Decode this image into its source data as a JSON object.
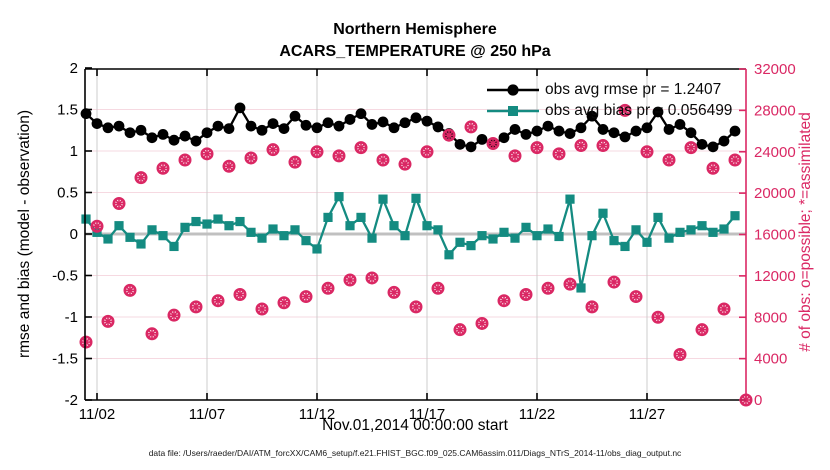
{
  "figure": {
    "title_line1": "Northern Hemisphere",
    "title_line2": "ACARS_TEMPERATURE @ 250 hPa",
    "xlabel": "Nov.01,2014 00:00:00 start",
    "ylabel_left": "rmse and bias (model - observation)",
    "ylabel_right": "# of obs: o=possible; *=assimilated",
    "datafile_note": "data file: /Users/raeder/DAI/ATM_forcXX/CAM6_setup/f.e21.FHIST_BGC.f09_025.CAM6assim.011/Diags_NTrS_2014-11/obs_diag_output.nc",
    "legend": {
      "rmse_label": "obs avg rmse pr = 1.2407",
      "bias_label": "obs avg bias pr = 0.056499"
    }
  },
  "colors": {
    "black": "#000000",
    "teal": "#148B81",
    "pink": "#DA2864",
    "grid_h": "#f6d9e1",
    "grid_v": "#cccccc",
    "zero_line": "#c0c0c0"
  },
  "chart_data": {
    "type": "line",
    "title": "Northern Hemisphere / ACARS_TEMPERATURE @ 250 hPa",
    "xlabel": "Nov.01,2014 00:00:00 start",
    "ylabel_left": "rmse and bias (model - observation)",
    "ylabel_right": "# of obs: o=possible; *=assimilated",
    "x_unit": "days since Nov 1, 2014 00:00 UTC",
    "y_left_range": [
      -2,
      2
    ],
    "y_right_range": [
      0,
      32000
    ],
    "grid": true,
    "legend_position": "upper-right-inside",
    "x_ticks": [
      {
        "t": 1,
        "label": "11/02"
      },
      {
        "t": 6,
        "label": "11/07"
      },
      {
        "t": 11,
        "label": "11/12"
      },
      {
        "t": 16,
        "label": "11/17"
      },
      {
        "t": 21,
        "label": "11/22"
      },
      {
        "t": 26,
        "label": "11/27"
      }
    ],
    "y_left_ticks": [
      {
        "v": 2,
        "label": "2"
      },
      {
        "v": 1.5,
        "label": "1.5"
      },
      {
        "v": 1,
        "label": "1"
      },
      {
        "v": 0.5,
        "label": "0.5"
      },
      {
        "v": 0,
        "label": "0"
      },
      {
        "v": -0.5,
        "label": "-0.5"
      },
      {
        "v": -1,
        "label": "-1"
      },
      {
        "v": -1.5,
        "label": "-1.5"
      },
      {
        "v": -2,
        "label": "-2"
      }
    ],
    "y_right_ticks": [
      {
        "n": 32000,
        "label": "32000"
      },
      {
        "n": 28000,
        "label": "28000"
      },
      {
        "n": 24000,
        "label": "24000"
      },
      {
        "n": 20000,
        "label": "20000"
      },
      {
        "n": 16000,
        "label": "16000"
      },
      {
        "n": 12000,
        "label": "12000"
      },
      {
        "n": 8000,
        "label": "8000"
      },
      {
        "n": 4000,
        "label": "4000"
      },
      {
        "n": 0,
        "label": "0"
      }
    ],
    "series": [
      {
        "name": "obs avg rmse pr = 1.2407",
        "axis": "left",
        "color": "#000000",
        "marker": "filled-circle",
        "x": [
          0.5,
          1,
          1.5,
          2,
          2.5,
          3,
          3.5,
          4,
          4.5,
          5,
          5.5,
          6,
          6.5,
          7,
          7.5,
          8,
          8.5,
          9,
          9.5,
          10,
          10.5,
          11,
          11.5,
          12,
          12.5,
          13,
          13.5,
          14,
          14.5,
          15,
          15.5,
          16,
          16.5,
          17,
          17.5,
          18,
          18.5,
          19,
          19.5,
          20,
          20.5,
          21,
          21.5,
          22,
          22.5,
          23,
          23.5,
          24,
          24.5,
          25,
          25.5,
          26,
          26.5,
          27,
          27.5,
          28,
          28.5,
          29,
          29.5,
          30
        ],
        "values": [
          1.45,
          1.33,
          1.28,
          1.3,
          1.22,
          1.25,
          1.16,
          1.2,
          1.13,
          1.18,
          1.12,
          1.22,
          1.3,
          1.27,
          1.52,
          1.3,
          1.25,
          1.33,
          1.27,
          1.42,
          1.31,
          1.28,
          1.34,
          1.3,
          1.38,
          1.45,
          1.32,
          1.35,
          1.28,
          1.34,
          1.4,
          1.36,
          1.29,
          1.21,
          1.08,
          1.05,
          1.14,
          1.08,
          1.16,
          1.26,
          1.2,
          1.24,
          1.3,
          1.24,
          1.21,
          1.28,
          1.42,
          1.26,
          1.22,
          1.17,
          1.24,
          1.28,
          1.47,
          1.26,
          1.32,
          1.22,
          1.08,
          1.05,
          1.12,
          1.24
        ]
      },
      {
        "name": "obs avg bias pr = 0.056499",
        "axis": "left",
        "color": "#148B81",
        "marker": "filled-square",
        "x": [
          0.5,
          1,
          1.5,
          2,
          2.5,
          3,
          3.5,
          4,
          4.5,
          5,
          5.5,
          6,
          6.5,
          7,
          7.5,
          8,
          8.5,
          9,
          9.5,
          10,
          10.5,
          11,
          11.5,
          12,
          12.5,
          13,
          13.5,
          14,
          14.5,
          15,
          15.5,
          16,
          16.5,
          17,
          17.5,
          18,
          18.5,
          19,
          19.5,
          20,
          20.5,
          21,
          21.5,
          22,
          22.5,
          23,
          23.5,
          24,
          24.5,
          25,
          25.5,
          26,
          26.5,
          27,
          27.5,
          28,
          28.5,
          29,
          29.5,
          30
        ],
        "values": [
          0.18,
          0.02,
          -0.06,
          0.1,
          -0.04,
          -0.12,
          0.05,
          -0.02,
          -0.15,
          0.08,
          0.15,
          0.12,
          0.18,
          0.1,
          0.15,
          0.02,
          -0.05,
          0.06,
          -0.02,
          0.05,
          -0.08,
          -0.18,
          0.2,
          0.45,
          0.1,
          0.2,
          -0.05,
          0.42,
          0.1,
          -0.02,
          0.43,
          0.1,
          0.05,
          -0.25,
          -0.1,
          -0.14,
          -0.02,
          -0.06,
          0.02,
          -0.05,
          0.08,
          -0.02,
          0.06,
          -0.03,
          0.42,
          -0.65,
          -0.02,
          0.25,
          -0.08,
          -0.15,
          0.05,
          -0.1,
          0.2,
          -0.05,
          0.02,
          0.05,
          0.1,
          0.02,
          0.06,
          0.22
        ]
      },
      {
        "name": "# of obs (possible / assimilated)",
        "axis": "right",
        "color": "#DA2864",
        "marker": "circle-with-asterisk",
        "x": [
          0.5,
          1,
          1.5,
          2,
          2.5,
          3,
          3.5,
          4,
          4.5,
          5,
          5.5,
          6,
          6.5,
          7,
          7.5,
          8,
          8.5,
          9,
          9.5,
          10,
          10.5,
          11,
          11.5,
          12,
          12.5,
          13,
          13.5,
          14,
          14.5,
          15,
          15.5,
          16,
          16.5,
          17,
          17.5,
          18,
          18.5,
          19,
          19.5,
          20,
          20.5,
          21,
          21.5,
          22,
          22.5,
          23,
          23.5,
          24,
          24.5,
          25,
          25.5,
          26,
          26.5,
          27,
          27.5,
          28,
          28.5,
          29,
          29.5,
          30,
          30.5
        ],
        "values": [
          5600,
          16800,
          7600,
          19000,
          10600,
          21500,
          6400,
          22400,
          8200,
          23200,
          9000,
          23800,
          9600,
          22600,
          10200,
          23400,
          8800,
          24200,
          9400,
          23000,
          10000,
          24000,
          10800,
          23600,
          11600,
          24400,
          11800,
          23200,
          10400,
          22800,
          9000,
          24000,
          10800,
          25600,
          6800,
          26400,
          7400,
          24800,
          9600,
          23600,
          10200,
          24400,
          10800,
          23800,
          11200,
          24600,
          9000,
          24600,
          11400,
          28000,
          10000,
          24000,
          8000,
          23200,
          4400,
          24400,
          6800,
          22400,
          8800,
          23200,
          0
        ]
      }
    ]
  }
}
